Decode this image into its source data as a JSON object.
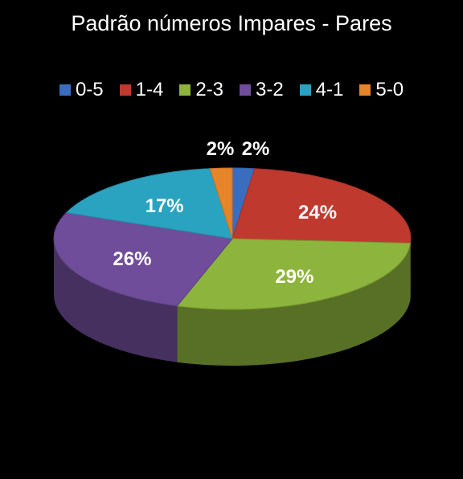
{
  "chart_data": {
    "type": "pie",
    "title": "Padrão números Impares - Pares",
    "legend_position": "top",
    "categories": [
      "0-5",
      "1-4",
      "2-3",
      "3-2",
      "4-1",
      "5-0"
    ],
    "values": [
      2,
      24,
      29,
      26,
      17,
      2
    ],
    "labels": [
      "2%",
      "24%",
      "29%",
      "26%",
      "17%",
      "2%"
    ],
    "colors": [
      "#3b6dbf",
      "#c0392e",
      "#8db43c",
      "#6f4d9a",
      "#2aa3c0",
      "#e6842a"
    ]
  }
}
